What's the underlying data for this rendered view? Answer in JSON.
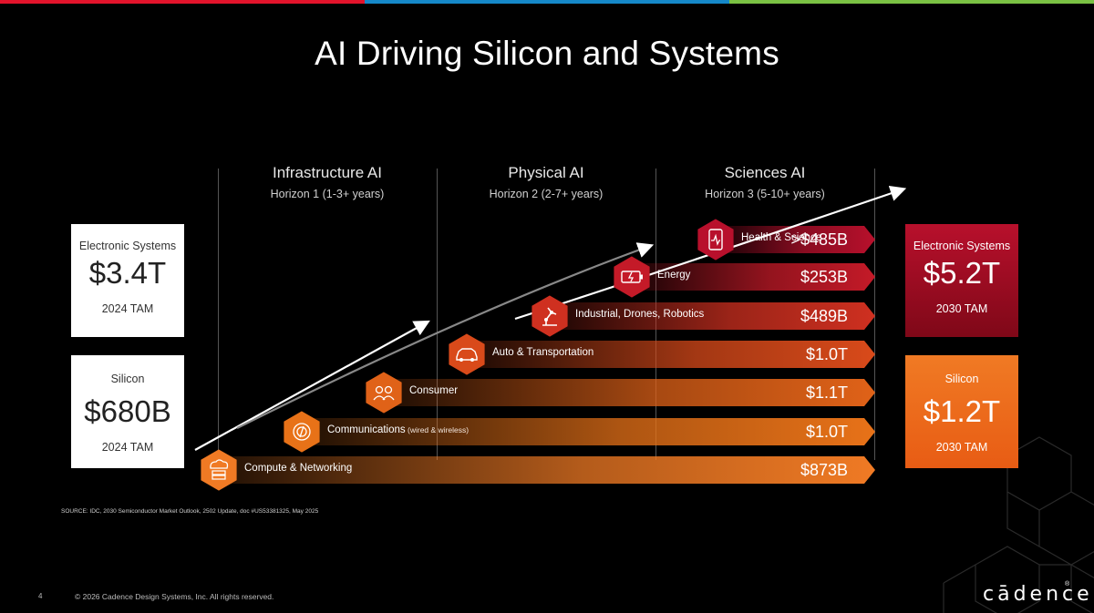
{
  "colors": {
    "topbar": [
      "#e3132b",
      "#1588c9",
      "#7ac143"
    ],
    "silicon_orange": "#f07a24",
    "systems_red": "#b8102c",
    "background": "#000000"
  },
  "title": "AI Driving Silicon and Systems",
  "horizons": [
    {
      "name": "Infrastructure AI",
      "sub": "Horizon 1  (1-3+ years)"
    },
    {
      "name": "Physical AI",
      "sub": "Horizon 2  (2-7+ years)"
    },
    {
      "name": "Sciences AI",
      "sub": "Horizon 3  (5-10+ years)"
    }
  ],
  "left": {
    "systems": {
      "label": "Electronic Systems",
      "value": "$3.4T",
      "year": "2024 TAM"
    },
    "silicon": {
      "label": "Silicon",
      "value": "$680B",
      "year": "2024 TAM"
    }
  },
  "right": {
    "systems": {
      "label": "Electronic Systems",
      "value": "$5.2T",
      "year": "2030 TAM"
    },
    "silicon": {
      "label": "Silicon",
      "value": "$1.2T",
      "year": "2030 TAM"
    }
  },
  "segments": [
    {
      "label": "Health & Science",
      "label_small": "",
      "value": ">$485B",
      "icon": "health-icon",
      "color": "#b8102c"
    },
    {
      "label": "Energy",
      "label_small": "",
      "value": "$253B",
      "icon": "battery-icon",
      "color": "#c41a28"
    },
    {
      "label": "Industrial, Drones, Robotics",
      "label_small": "",
      "value": "$489B",
      "icon": "robot-arm-icon",
      "color": "#cf3020"
    },
    {
      "label": "Auto & Transportation",
      "label_small": "",
      "value": "$1.0T",
      "icon": "car-icon",
      "color": "#d94a1a"
    },
    {
      "label": "Consumer",
      "label_small": "",
      "value": "$1.1T",
      "icon": "people-icon",
      "color": "#e06218"
    },
    {
      "label": "Communications",
      "label_small": "(wired & wireless)",
      "value": "$1.0T",
      "icon": "signal-icon",
      "color": "#e87218"
    },
    {
      "label": "Compute & Networking",
      "label_small": "",
      "value": "$873B",
      "icon": "server-cloud-icon",
      "color": "#f07a24"
    }
  ],
  "source": "SOURCE: IDC, 2030 Semiconductor Market Outlook, 2502 Update, doc #US53381325, May 2025",
  "page_number": "4",
  "copyright": "© 2026 Cadence Design Systems, Inc. All rights reserved.",
  "logo": "cādence",
  "logo_mark": "®"
}
